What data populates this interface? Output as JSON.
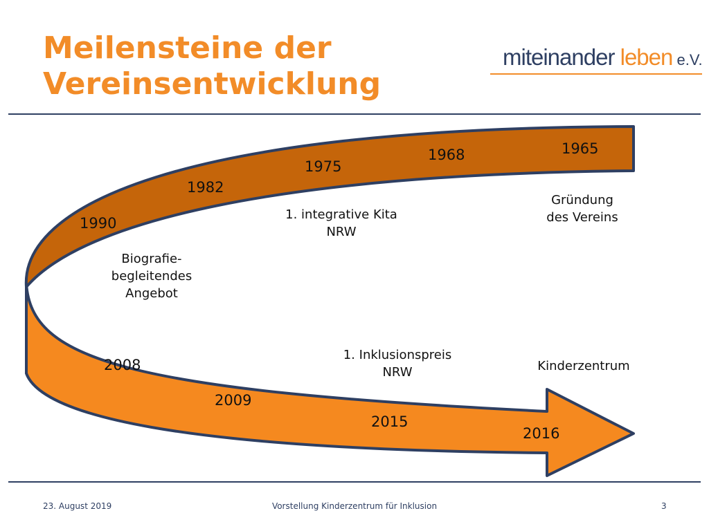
{
  "slide": {
    "title_line1": "Meilensteine der",
    "title_line2": "Vereinsentwicklung"
  },
  "logo": {
    "main": "miteinander ",
    "accent": "leben",
    "suffix": " e.V."
  },
  "timeline": {
    "years": {
      "y1965": "1965",
      "y1968": "1968",
      "y1975": "1975",
      "y1982": "1982",
      "y1990": "1990",
      "y2008": "2008",
      "y2009": "2009",
      "y2015": "2015",
      "y2016": "2016"
    },
    "captions": {
      "gruendung_1": "Gründung",
      "gruendung_2": "des Vereins",
      "kita_1": "1. integrative Kita",
      "kita_2": "NRW",
      "biografie_1": "Biografie-",
      "biografie_2": "begleitendes",
      "biografie_3": "Angebot",
      "inklusionspreis_1": "1. Inklusionspreis",
      "inklusionspreis_2": "NRW",
      "kinderzentrum": "Kinderzentrum"
    },
    "colors": {
      "upper_band": "#c5650a",
      "lower_band": "#f5891f",
      "outline": "#2e3f62"
    }
  },
  "footer": {
    "date": "23. August 2019",
    "title": "Vorstellung Kinderzentrum für Inklusion",
    "page": "3"
  }
}
